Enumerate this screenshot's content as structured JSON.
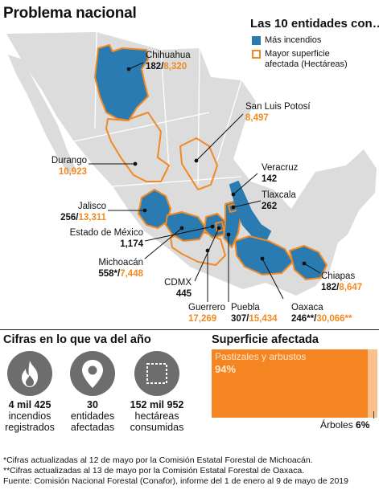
{
  "title": "Problema nacional",
  "legend": {
    "title": "Las 10 entidades con…",
    "items": [
      {
        "label": "Más incendios",
        "icon": "blue-fill-swatch"
      },
      {
        "label": "Mayor superficie\nafectada (Hectáreas)",
        "icon": "orange-outline-swatch"
      }
    ]
  },
  "colors": {
    "blue": "#2b7bb3",
    "orange": "#f08a24",
    "land": "#dcdcdc"
  },
  "states": [
    {
      "name": "Chihuahua",
      "fires": "182/",
      "area": "8,320"
    },
    {
      "name": "San Luis Potosí",
      "area": "8,497"
    },
    {
      "name": "Durango",
      "area": "10,923"
    },
    {
      "name": "Veracruz",
      "fires": "142"
    },
    {
      "name": "Tlaxcala",
      "fires": "262"
    },
    {
      "name": "Jalisco",
      "fires": "256/",
      "area": "13,311"
    },
    {
      "name": "Estado de México",
      "fires": "1,174"
    },
    {
      "name": "Michoacán",
      "fires": "558*/",
      "area": "7,448"
    },
    {
      "name": "CDMX",
      "fires": "445"
    },
    {
      "name": "Guerrero",
      "area": "17,269"
    },
    {
      "name": "Puebla",
      "fires": "307/",
      "area": "15,434"
    },
    {
      "name": "Oaxaca",
      "fires": "246**/",
      "area": "30,066**"
    },
    {
      "name": "Chiapas",
      "fires": "182/",
      "area": "8,647"
    }
  ],
  "stats": {
    "title": "Cifras en lo que va del año",
    "items": [
      {
        "icon": "fire-icon",
        "value": "4 mil 425",
        "line1": "incendios",
        "line2": "registrados"
      },
      {
        "icon": "location-pin-icon",
        "value": "30",
        "line1": "entidades",
        "line2": "afectadas"
      },
      {
        "icon": "area-square-icon",
        "value": "152 mil 952",
        "line1": "hectáreas",
        "line2": "consumidas"
      }
    ]
  },
  "surface": {
    "title": "Superficie afectada",
    "main_label": "Pastizales y arbustos",
    "main_pct": "94%",
    "main_value": 94,
    "trees_label": "Árboles",
    "trees_pct": "6%",
    "trees_value": 6
  },
  "notes": [
    "*Cifras actualizadas al 12 de mayo por la Comisión Estatal Forestal de Michoacán.",
    "**Cifras actualizadas al 13 de mayo por la Comisión Estatal Forestal de Oaxaca.",
    "Fuente: Comisión Nacional Forestal (Conafor),  informe del 1 de enero al 9 de mayo de 2019"
  ]
}
